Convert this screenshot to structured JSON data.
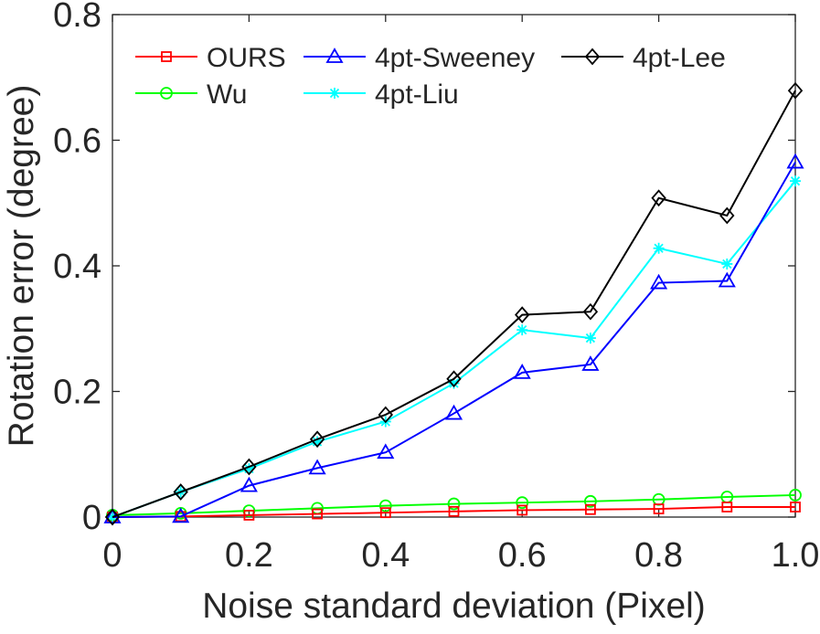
{
  "chart_data": {
    "type": "line",
    "title": "",
    "xlabel": "Noise standard deviation (Pixel)",
    "ylabel": "Rotation error (degree)",
    "xlim": [
      0,
      1.0
    ],
    "ylim": [
      0,
      0.8
    ],
    "xticks": [
      "0",
      "0.2",
      "0.4",
      "0.6",
      "0.8",
      "1.0"
    ],
    "yticks": [
      "0",
      "0.2",
      "0.4",
      "0.6",
      "0.8"
    ],
    "grid": false,
    "legend_position": "top-left",
    "x": [
      0,
      0.1,
      0.2,
      0.3,
      0.4,
      0.5,
      0.6,
      0.7,
      0.8,
      0.9,
      1.0
    ],
    "series": [
      {
        "name": "OURS",
        "color": "#ff0000",
        "marker": "square",
        "values": [
          0,
          0.001,
          0.003,
          0.005,
          0.007,
          0.009,
          0.011,
          0.012,
          0.013,
          0.016,
          0.016
        ]
      },
      {
        "name": "4pt-Sweeney",
        "color": "#0000ff",
        "marker": "triangle",
        "values": [
          0,
          0.001,
          0.05,
          0.078,
          0.103,
          0.165,
          0.23,
          0.243,
          0.373,
          0.376,
          0.565
        ]
      },
      {
        "name": "4pt-Lee",
        "color": "#000000",
        "marker": "diamond",
        "values": [
          0,
          0.04,
          0.08,
          0.124,
          0.163,
          0.22,
          0.322,
          0.327,
          0.508,
          0.48,
          0.679
        ]
      },
      {
        "name": "Wu",
        "color": "#00ff00",
        "marker": "circle",
        "values": [
          0.003,
          0.006,
          0.01,
          0.014,
          0.018,
          0.021,
          0.023,
          0.025,
          0.028,
          0.032,
          0.035
        ]
      },
      {
        "name": "4pt-Liu",
        "color": "#00ffff",
        "marker": "star",
        "values": [
          0,
          0.04,
          0.077,
          0.12,
          0.152,
          0.213,
          0.298,
          0.285,
          0.428,
          0.403,
          0.535
        ]
      }
    ]
  }
}
